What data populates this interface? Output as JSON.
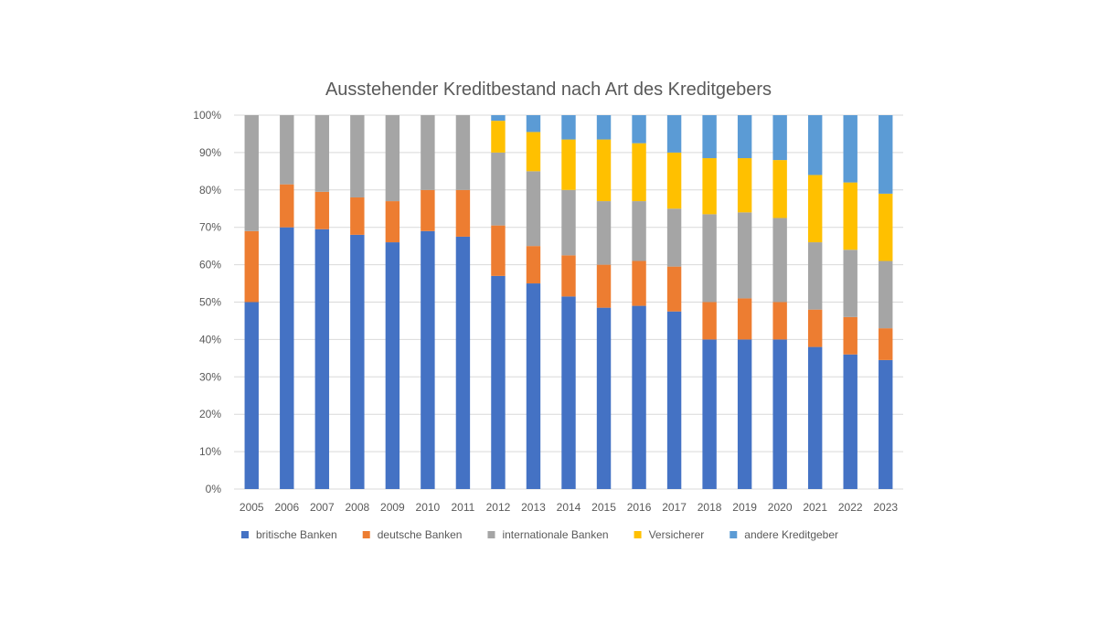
{
  "chart_data": {
    "type": "bar",
    "stacked": true,
    "title": "Ausstehender Kreditbestand nach Art des Kreditgebers",
    "xlabel": "",
    "ylabel": "",
    "ylim": [
      0,
      100
    ],
    "y_ticks": [
      "0%",
      "10%",
      "20%",
      "30%",
      "40%",
      "50%",
      "60%",
      "70%",
      "80%",
      "90%",
      "100%"
    ],
    "grid": true,
    "legend_position": "bottom",
    "categories": [
      "2005",
      "2006",
      "2007",
      "2008",
      "2009",
      "2010",
      "2011",
      "2012",
      "2013",
      "2014",
      "2015",
      "2016",
      "2017",
      "2018",
      "2019",
      "2020",
      "2021",
      "2022",
      "2023"
    ],
    "series": [
      {
        "name": "britische Banken",
        "color": "#4472C4",
        "values": [
          50,
          70,
          69.5,
          68,
          66,
          69,
          67.5,
          57,
          55,
          51.5,
          48.5,
          49,
          47.5,
          40,
          40,
          40,
          38,
          36,
          34.5
        ]
      },
      {
        "name": "deutsche Banken",
        "color": "#ED7D31",
        "values": [
          19,
          11.5,
          10,
          10,
          11,
          11,
          12.5,
          13.5,
          10,
          11,
          11.5,
          12,
          12,
          10,
          11,
          10,
          10,
          10,
          8.5
        ]
      },
      {
        "name": "internationale Banken",
        "color": "#A5A5A5",
        "values": [
          31,
          18.5,
          20.5,
          22,
          23,
          20,
          20,
          19.5,
          20,
          17.5,
          17,
          16,
          15.5,
          23.5,
          23,
          22.5,
          18,
          18,
          18
        ]
      },
      {
        "name": "Versicherer",
        "color": "#FFC000",
        "values": [
          0,
          0,
          0,
          0,
          0,
          0,
          0,
          8.5,
          10.5,
          13.5,
          16.5,
          15.5,
          15,
          15,
          14.5,
          15.5,
          18,
          18,
          18
        ]
      },
      {
        "name": "andere Kreditgeber",
        "color": "#5B9BD5",
        "values": [
          0,
          0,
          0,
          0,
          0,
          0,
          0,
          1.5,
          4.5,
          6.5,
          6.5,
          7.5,
          10,
          11.5,
          11.5,
          12,
          16,
          18,
          21
        ]
      }
    ]
  }
}
